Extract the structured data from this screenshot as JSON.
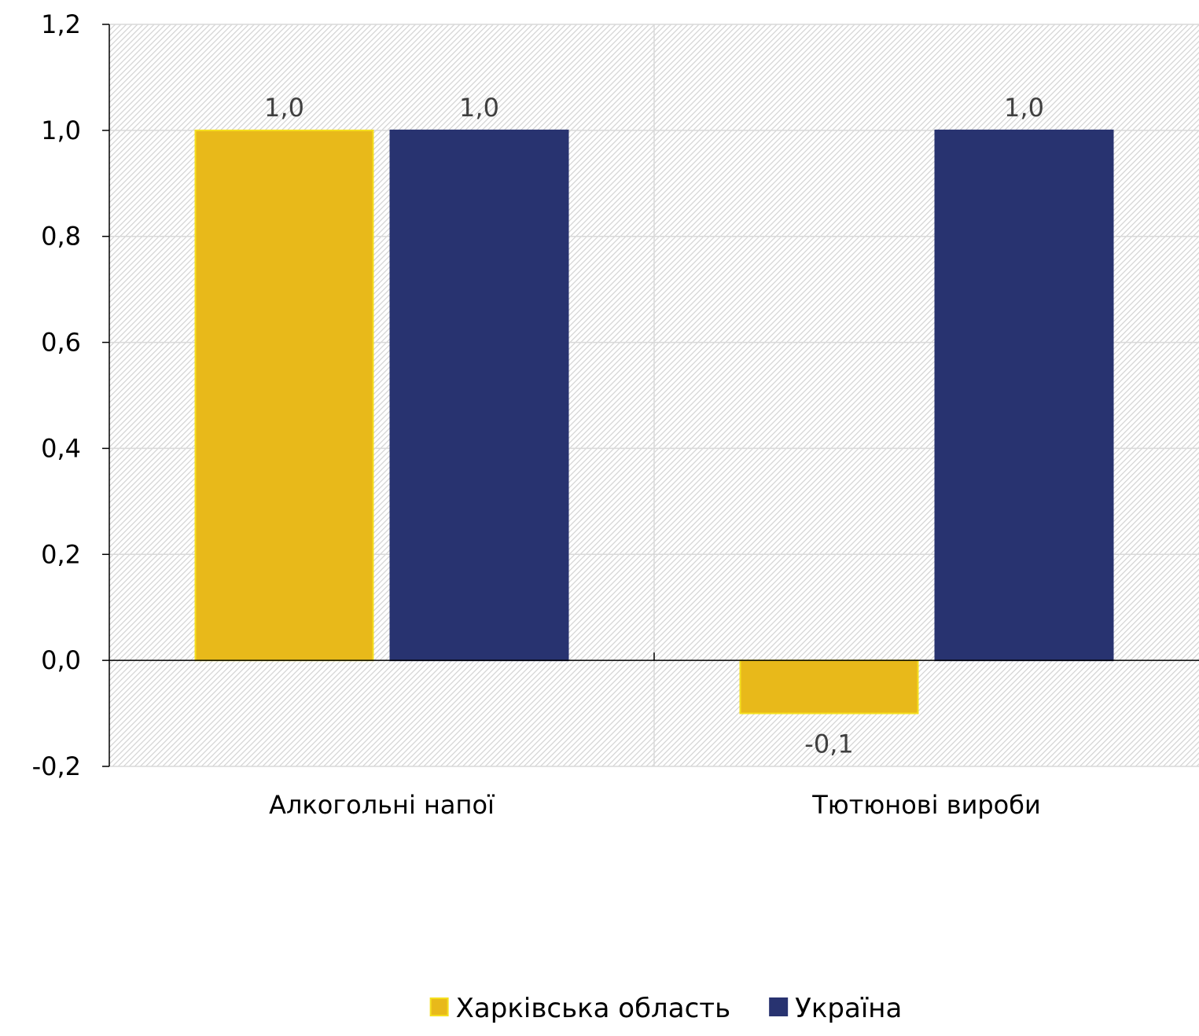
{
  "chart_data": {
    "type": "bar",
    "categories": [
      "Алкогольні напої",
      "Тютюнові вироби"
    ],
    "series": [
      {
        "name": "Харківська область",
        "values": [
          1.0,
          -0.1
        ],
        "color": "#E8B91A",
        "labels": [
          "1,0",
          "-0,1"
        ]
      },
      {
        "name": "Україна",
        "values": [
          1.0,
          1.0
        ],
        "color": "#283370",
        "labels": [
          "1,0",
          "1,0"
        ]
      }
    ],
    "ylim": [
      -0.2,
      1.2
    ],
    "yticks": [
      1.2,
      1.0,
      0.8,
      0.6,
      0.4,
      0.2,
      0.0,
      -0.2
    ],
    "ytick_labels": [
      "1,2",
      "1,0",
      "0,8",
      "0,6",
      "0,4",
      "0,2",
      "0,0",
      "-0,2"
    ],
    "title": "",
    "xlabel": "",
    "ylabel": "",
    "grid": true,
    "legend_position": "bottom",
    "plot_background": "hatched-light-gray"
  }
}
